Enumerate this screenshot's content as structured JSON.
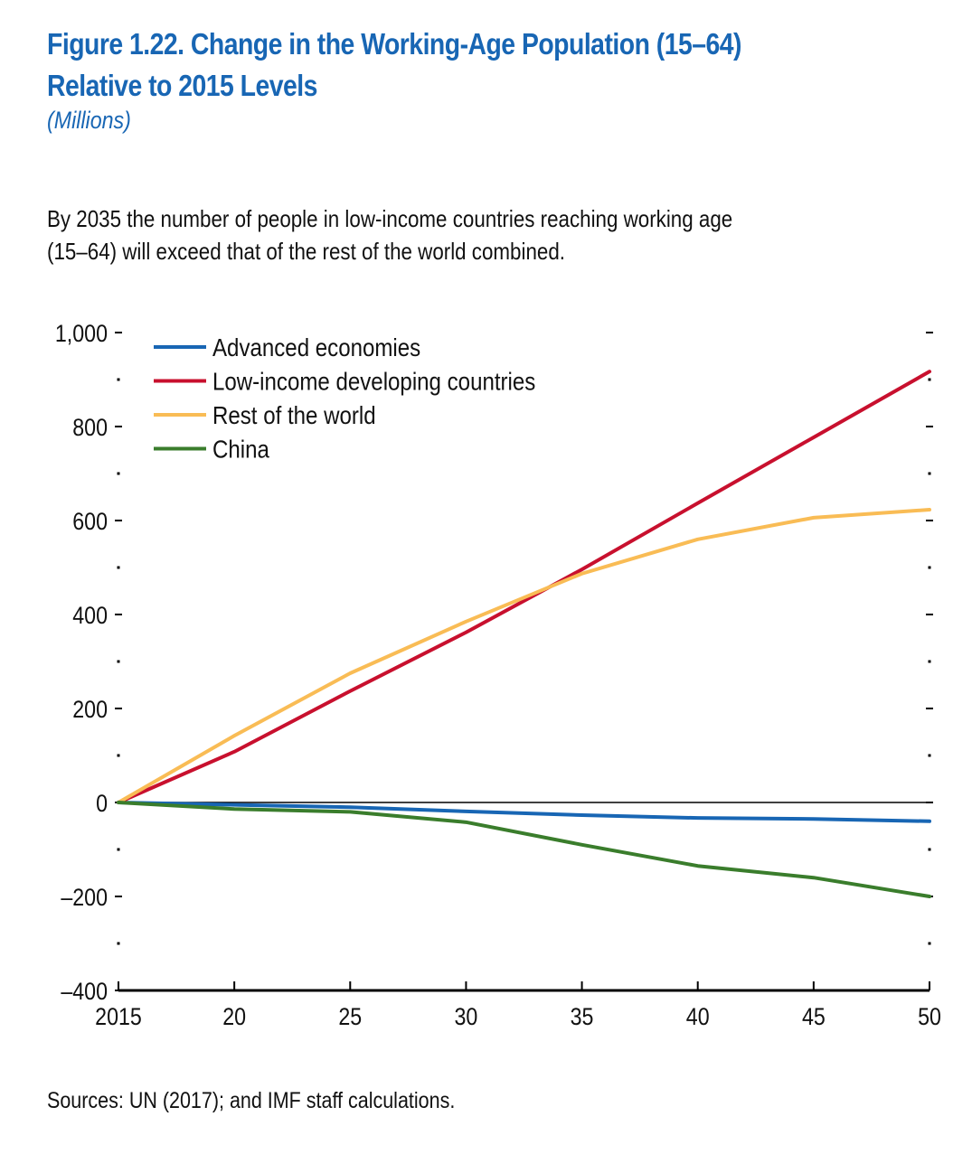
{
  "figure": {
    "title_line1": "Figure 1.22.  Change in the Working-Age Population (15–64)",
    "title_line2": "Relative to 2015 Levels",
    "units": "(Millions)",
    "note_line1": "By 2035 the number of people in low-income countries reaching working age",
    "note_line2": "(15–64) will exceed that of the rest of the world combined.",
    "source": "Sources: UN (2017); and IMF staff calculations."
  },
  "chart_data": {
    "type": "line",
    "title": "Change in the Working-Age Population (15–64) Relative to 2015 Levels",
    "subtitle": "(Millions)",
    "xlabel": "",
    "ylabel": "",
    "x": [
      2015,
      2020,
      2025,
      2030,
      2035,
      2040,
      2045,
      2050
    ],
    "x_tick_values": [
      2015,
      2020,
      2025,
      2030,
      2035,
      2040,
      2045,
      2050
    ],
    "x_tick_labels": [
      "2015",
      "20",
      "25",
      "30",
      "35",
      "40",
      "45",
      "50"
    ],
    "xlim": [
      2015,
      2050
    ],
    "ylim": [
      -400,
      1000
    ],
    "y_ticks": [
      -400,
      -200,
      0,
      200,
      400,
      600,
      800,
      1000
    ],
    "y_tick_labels": [
      "–400",
      "–200",
      "0",
      "200",
      "400",
      "600",
      "800",
      "1,000"
    ],
    "y_minor_ticks": [
      -300,
      -100,
      100,
      300,
      500,
      700,
      900
    ],
    "zero_line": true,
    "grid": false,
    "legend_position": "top-left",
    "series": [
      {
        "name": "Advanced economies",
        "color": "#1866b4",
        "values": [
          0,
          -5,
          -10,
          -19,
          -27,
          -33,
          -35,
          -40
        ]
      },
      {
        "name": "Low-income developing countries",
        "color": "#c8102e",
        "values": [
          0,
          108,
          237,
          362,
          496,
          637,
          777,
          917
        ]
      },
      {
        "name": "Rest of the world",
        "color": "#f9bc55",
        "values": [
          0,
          142,
          275,
          385,
          487,
          560,
          606,
          623
        ]
      },
      {
        "name": "China",
        "color": "#3a7d2c",
        "values": [
          0,
          -14,
          -20,
          -42,
          -90,
          -135,
          -160,
          -200
        ]
      }
    ]
  }
}
